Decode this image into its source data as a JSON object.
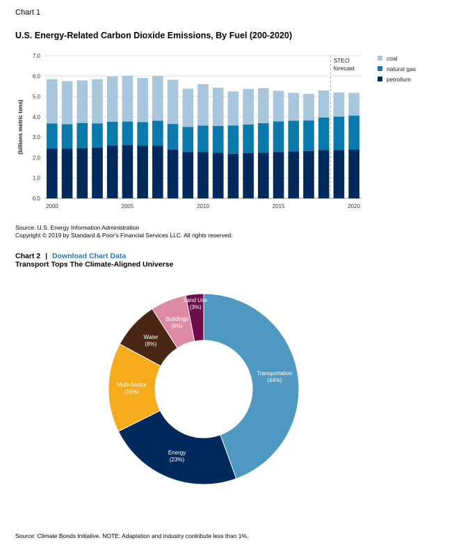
{
  "chart1": {
    "label": "Chart 1",
    "source": "Source: U.S. Energy Information Administration",
    "copyright": "Copyright © 2019 by Standard & Poor's Financial Services LLC. All rights reserved.",
    "forecast_label_1": "STEO",
    "forecast_label_2": "forecast"
  },
  "chart2": {
    "label": "Chart 2",
    "separator": "|",
    "download_link": "Download Chart Data",
    "source": "Source: Climate Bonds Initiative. NOTE: Adaptation and industry contribute less than 1%."
  },
  "chart_data": [
    {
      "type": "bar",
      "stacked": true,
      "title": "U.S. Energy-Related Carbon Dioxide Emissions, By Fuel (200-2020)",
      "ylabel": "(billions metric tons)",
      "ylim": [
        0,
        7
      ],
      "yticks": [
        "0.0",
        "1.0",
        "2.0",
        "3.0",
        "4.0",
        "5.0",
        "6.0",
        "7.0"
      ],
      "xticks": [
        "2000",
        "2005",
        "2010",
        "2015",
        "2020"
      ],
      "categories": [
        2000,
        2001,
        2002,
        2003,
        2004,
        2005,
        2006,
        2007,
        2008,
        2009,
        2010,
        2011,
        2012,
        2013,
        2014,
        2015,
        2016,
        2017,
        2018,
        2019,
        2020
      ],
      "forecast_start": 2019,
      "grid": true,
      "legend_position": "top-right",
      "series": [
        {
          "name": "petrolium",
          "color": "#002a5c",
          "values": [
            2.45,
            2.45,
            2.46,
            2.5,
            2.6,
            2.62,
            2.59,
            2.59,
            2.4,
            2.27,
            2.28,
            2.24,
            2.19,
            2.22,
            2.24,
            2.28,
            2.31,
            2.33,
            2.37,
            2.37,
            2.39
          ]
        },
        {
          "name": "natural gas",
          "color": "#0a7aad",
          "values": [
            1.23,
            1.19,
            1.24,
            1.18,
            1.16,
            1.15,
            1.15,
            1.22,
            1.25,
            1.23,
            1.29,
            1.32,
            1.39,
            1.4,
            1.45,
            1.5,
            1.5,
            1.49,
            1.6,
            1.64,
            1.67
          ]
        },
        {
          "name": "coal",
          "color": "#a8c7dc",
          "values": [
            2.17,
            2.11,
            2.09,
            2.17,
            2.22,
            2.25,
            2.17,
            2.19,
            2.17,
            1.88,
            2.03,
            1.87,
            1.67,
            1.75,
            1.72,
            1.5,
            1.37,
            1.31,
            1.32,
            1.19,
            1.12
          ]
        }
      ]
    },
    {
      "type": "pie",
      "donut": true,
      "title": "Transport Tops The Climate-Aligned Universe",
      "slices": [
        {
          "label": "Transportation",
          "pct_label": "(44%)",
          "value": 44,
          "color": "#4e98c2"
        },
        {
          "label": "Energy",
          "pct_label": "(23%)",
          "value": 23,
          "color": "#002a5c"
        },
        {
          "label": "Multi-Sector",
          "pct_label": "(15%)",
          "value": 15,
          "color": "#f5ab1b"
        },
        {
          "label": "Water",
          "pct_label": "(8%)",
          "value": 8,
          "color": "#4a2614"
        },
        {
          "label": "Buildings",
          "pct_label": "(6%)",
          "value": 6,
          "color": "#df8aa4"
        },
        {
          "label": "Land Use",
          "pct_label": "(3%)",
          "value": 3,
          "color": "#6d0d4c"
        }
      ]
    }
  ]
}
